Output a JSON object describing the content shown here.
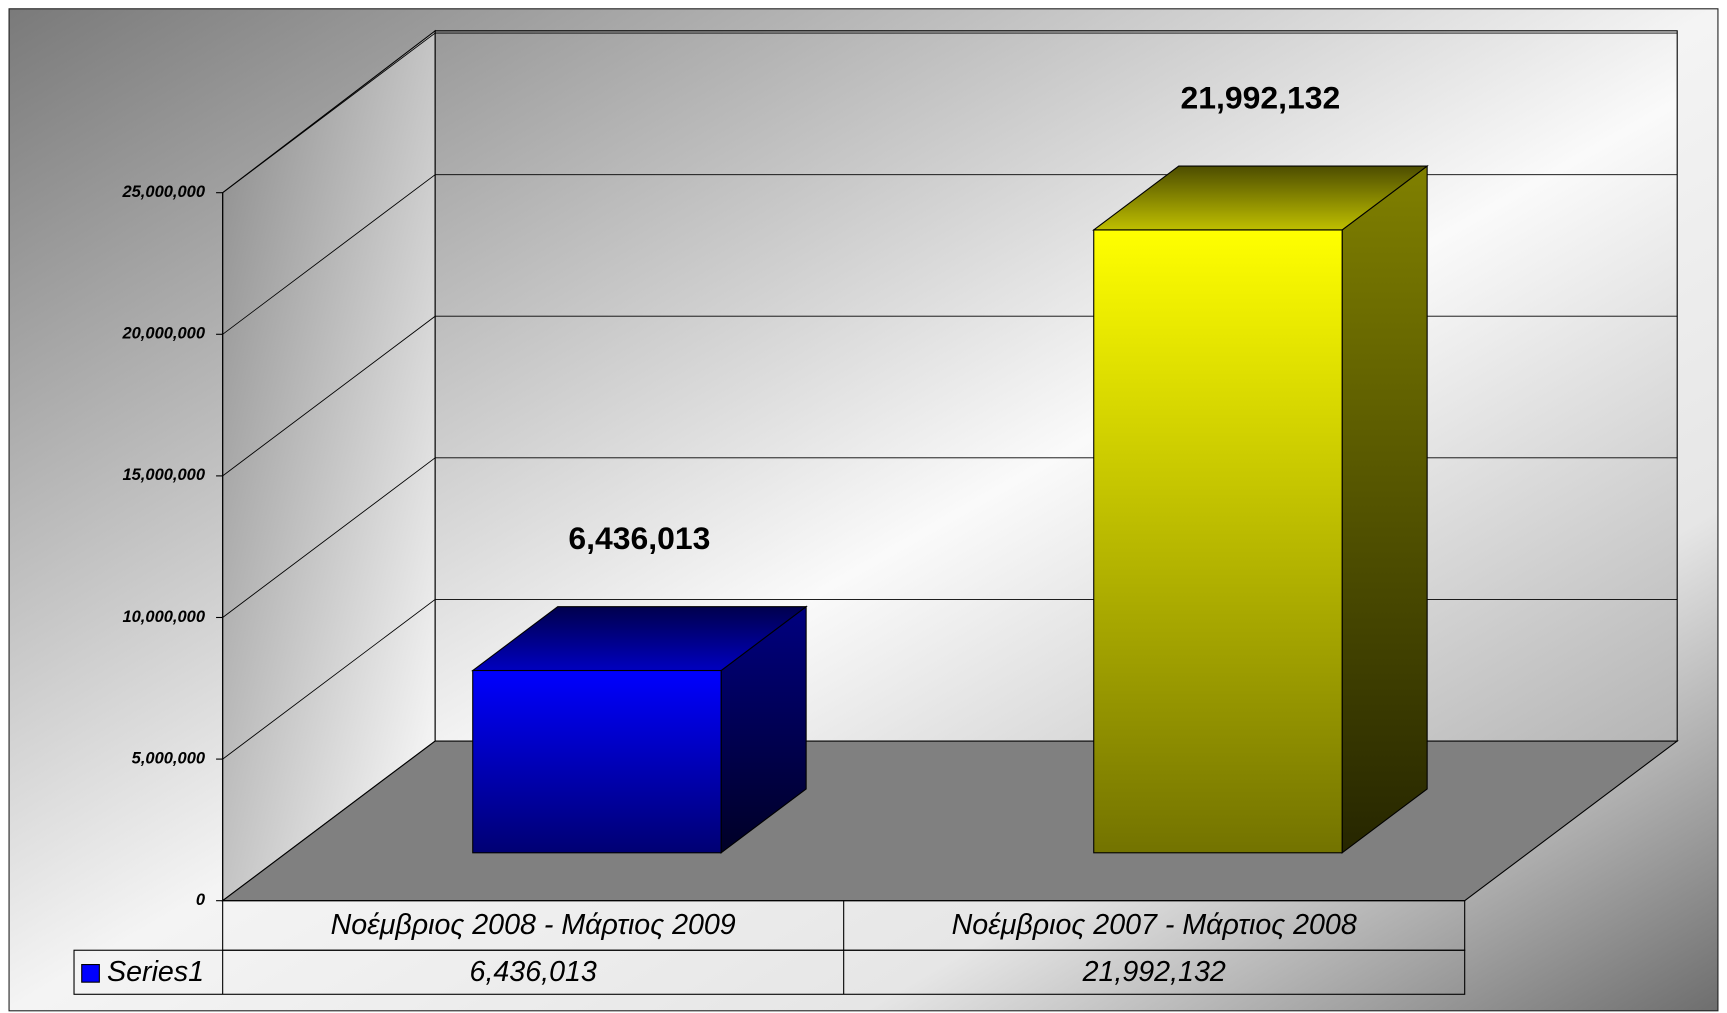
{
  "chart_data": {
    "type": "bar3d",
    "categories": [
      "Νοέμβριος 2008 - Μάρτιος 2009",
      "Νοέμβριος 2007 - Μάρτιος 2008"
    ],
    "series": [
      {
        "name": "Series1",
        "color": "#0000ff",
        "colors": [
          "#0000ff",
          "#ffff00"
        ],
        "values": [
          6436013,
          21992132
        ],
        "value_labels": [
          "6,436,013",
          "21,992,132"
        ]
      }
    ],
    "ylim": [
      0,
      25000000
    ],
    "yticks": [
      0,
      {
        "value": 5000000,
        "label": "5,000,000"
      },
      {
        "value": 10000000,
        "label": "10,000,000"
      },
      {
        "value": 15000000,
        "label": "15,000,000"
      },
      {
        "value": 20000000,
        "label": "20,000,000"
      },
      {
        "value": 25000000,
        "label": "25,000,000"
      }
    ],
    "grid": true
  }
}
